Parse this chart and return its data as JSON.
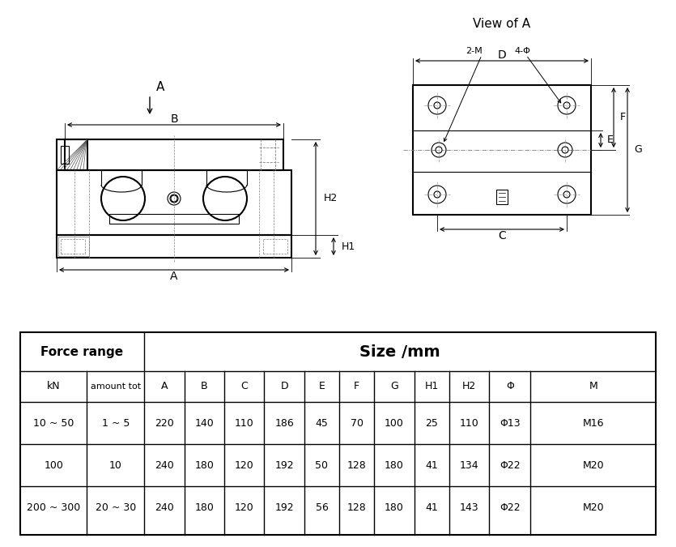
{
  "bg_color": "#ffffff",
  "line_color": "#000000",
  "table_headers_row1": [
    "Force range",
    "Size /mm"
  ],
  "table_headers_row2": [
    "kN",
    "amount tot",
    "A",
    "B",
    "C",
    "D",
    "E",
    "F",
    "G",
    "H1",
    "H2",
    "Φ",
    "M"
  ],
  "table_data": [
    [
      "10 ~ 50",
      "1 ~ 5",
      "220",
      "140",
      "110",
      "186",
      "45",
      "70",
      "100",
      "25",
      "110",
      "Φ13",
      "M16"
    ],
    [
      "100",
      "10",
      "240",
      "180",
      "120",
      "192",
      "50",
      "128",
      "180",
      "41",
      "134",
      "Φ22",
      "M20"
    ],
    [
      "200 ~ 300",
      "20 ~ 30",
      "240",
      "180",
      "120",
      "192",
      "56",
      "128",
      "180",
      "41",
      "143",
      "Φ22",
      "M20"
    ]
  ],
  "view_label": "View of A",
  "arrow_label": "A"
}
